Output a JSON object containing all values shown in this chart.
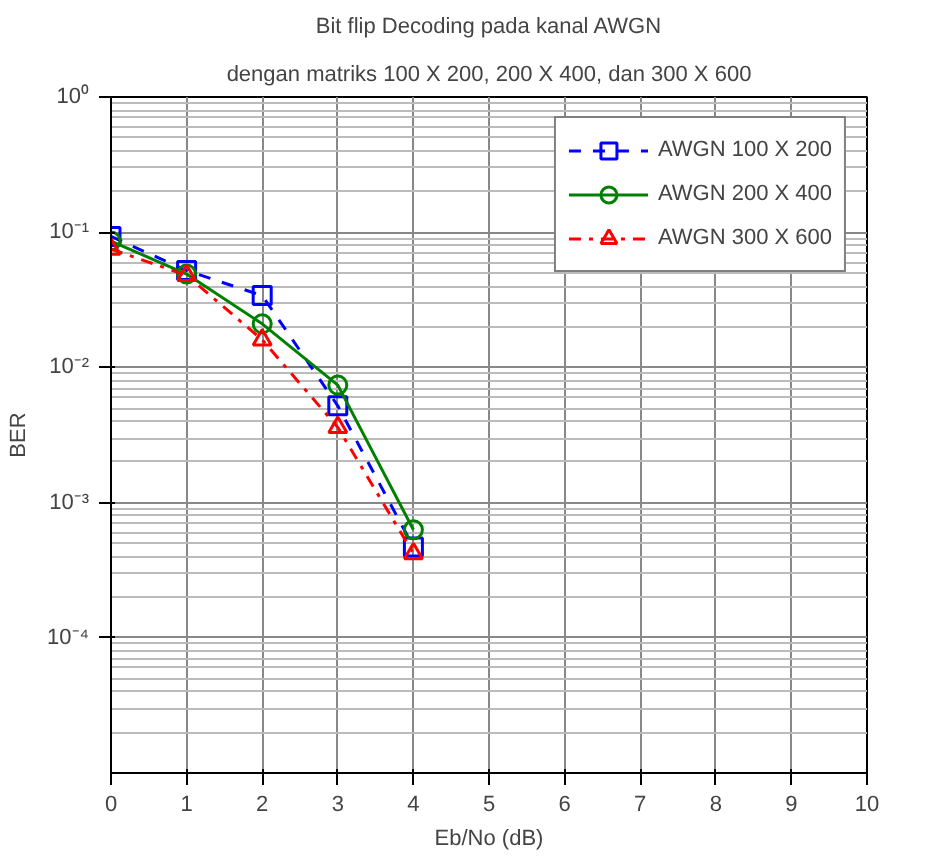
{
  "chart_data": {
    "type": "line",
    "title": "Bit flip Decoding pada kanal AWGN",
    "subtitle": "dengan matriks 100 X 200, 200 X 400, dan 300 X 600",
    "xlabel": "Eb/No (dB)",
    "ylabel": "BER",
    "x": [
      0,
      1,
      2,
      3,
      4
    ],
    "series": [
      {
        "name": "AWGN 100 X 200",
        "color": "#0000ff",
        "values": [
          0.093,
          0.052,
          0.034,
          0.0052,
          0.00047
        ],
        "marker": "square",
        "line_style": "dashed"
      },
      {
        "name": "AWGN 200 X 400",
        "color": "#008000",
        "values": [
          0.086,
          0.049,
          0.021,
          0.0074,
          0.00063
        ],
        "marker": "circle",
        "line_style": "solid"
      },
      {
        "name": "AWGN 300 X 600",
        "color": "#ff0000",
        "values": [
          0.075,
          0.048,
          0.016,
          0.0036,
          0.00042
        ],
        "marker": "triangle",
        "line_style": "dashdot"
      }
    ],
    "xlim": [
      0,
      10
    ],
    "xticks": [
      0,
      1,
      2,
      3,
      4,
      5,
      6,
      7,
      8,
      9,
      10
    ],
    "ylim": [
      1e-05,
      1
    ],
    "yticks": [
      {
        "value": 0.0001,
        "label": "10⁻⁴"
      },
      {
        "value": 0.001,
        "label": "10⁻³"
      },
      {
        "value": 0.01,
        "label": "10⁻²"
      },
      {
        "value": 0.1,
        "label": "10⁻¹"
      },
      {
        "value": 1,
        "label": "10⁰"
      }
    ],
    "log": "y",
    "grid": true,
    "legend": "top right"
  }
}
